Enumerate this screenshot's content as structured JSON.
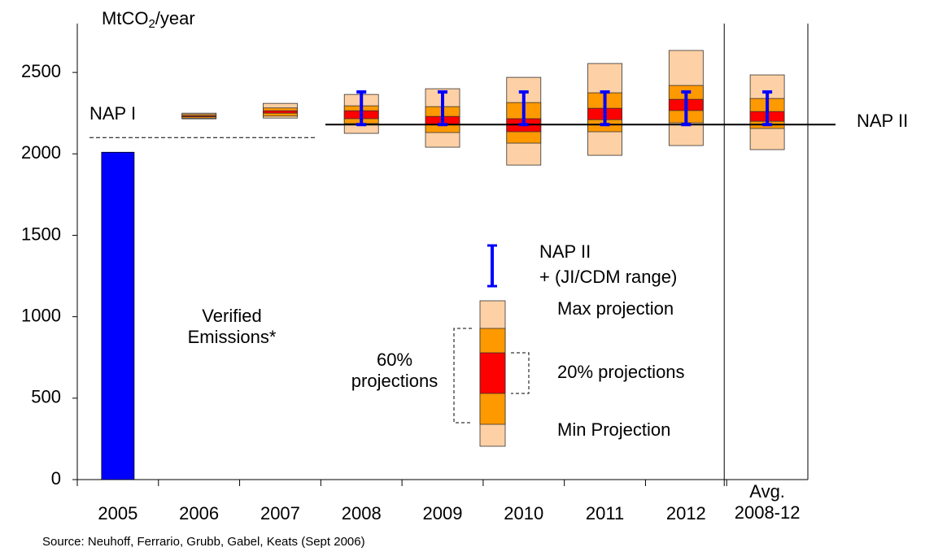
{
  "chart_data": {
    "type": "projection-boxes",
    "y_label": {
      "main": "MtCO",
      "sub": "2",
      "rest": "/year"
    },
    "categories": [
      "2005",
      "2006",
      "2007",
      "2008",
      "2009",
      "2010",
      "2011",
      "2012",
      "Avg. 2008-12"
    ],
    "ylim": [
      0,
      2800
    ],
    "yticks": [
      0,
      500,
      1000,
      1500,
      2000,
      2500
    ],
    "verified": {
      "label": "Verified Emissions*",
      "color": "#0000ff",
      "values": [
        2010,
        null,
        null,
        null,
        null,
        null,
        null,
        null,
        null
      ]
    },
    "projections": {
      "colors": {
        "outer": "#fdd0a5",
        "mid": "#ff9900",
        "inner": "#ff0000"
      },
      "min": [
        null,
        2215,
        2220,
        2126,
        2041,
        1931,
        1991,
        2051,
        2026
      ],
      "low60": [
        null,
        2220,
        2232,
        2186,
        2131,
        2066,
        2136,
        2191,
        2156
      ],
      "low20": [
        null,
        2228,
        2250,
        2216,
        2181,
        2136,
        2210,
        2266,
        2200
      ],
      "high20": [
        null,
        2234,
        2265,
        2265,
        2230,
        2216,
        2280,
        2335,
        2260
      ],
      "high60": [
        null,
        2242,
        2282,
        2295,
        2290,
        2315,
        2375,
        2420,
        2340
      ],
      "max": [
        null,
        2250,
        2310,
        2365,
        2400,
        2470,
        2555,
        2635,
        2485
      ]
    },
    "nap2_range": {
      "color": "#0000ff",
      "low": [
        null,
        null,
        null,
        2180,
        2180,
        2180,
        2180,
        2180,
        2180
      ],
      "high": [
        null,
        null,
        null,
        2380,
        2380,
        2380,
        2380,
        2380,
        2380
      ]
    },
    "nap1": {
      "label": "NAP I",
      "value": 2100
    },
    "nap2": {
      "label": "NAP II",
      "value": 2180
    },
    "legend": {
      "range_title": "NAP II",
      "range_sub": "+ (JI/CDM range)",
      "max": "Max projection",
      "p60": "60% projections",
      "p20": "20% projections",
      "min": "Min Projection"
    },
    "source": "Source: Neuhoff, Ferrario, Grubb, Gabel, Keats (Sept 2006)"
  }
}
